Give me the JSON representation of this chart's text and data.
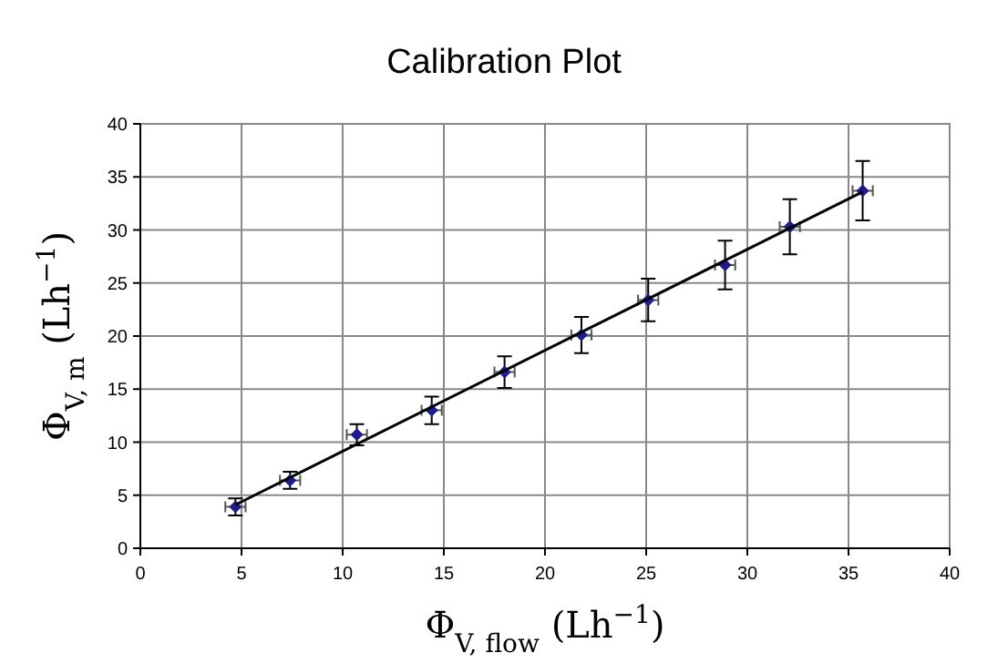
{
  "chart_data": {
    "type": "scatter",
    "title": "Calibration Plot",
    "xlabel": "Φ$_{V, flow}$ (Lh$^{−1}$)",
    "ylabel": "Φ$_{V, m}$ (Lh$^{−1}$)",
    "xlim": [
      0,
      40
    ],
    "ylim": [
      0,
      40
    ],
    "xticks": [
      0,
      5,
      10,
      15,
      20,
      25,
      30,
      35,
      40
    ],
    "yticks": [
      0,
      5,
      10,
      15,
      20,
      25,
      30,
      35,
      40
    ],
    "grid": true,
    "series": [
      {
        "color": "#1c1c8c",
        "marker": "diamond",
        "x": [
          4.7,
          7.4,
          10.7,
          14.4,
          18.0,
          21.8,
          25.1,
          28.9,
          32.1,
          35.7
        ],
        "values": [
          3.9,
          6.4,
          10.7,
          13.0,
          16.6,
          20.1,
          23.4,
          26.7,
          30.3,
          33.7
        ],
        "errors": [
          0.8,
          0.8,
          1.0,
          1.3,
          1.5,
          1.7,
          2.0,
          2.3,
          2.6,
          2.8
        ],
        "xerrors": [
          0.5,
          0.5,
          0.5,
          0.5,
          0.5,
          0.5,
          0.5,
          0.5,
          0.5,
          0.5
        ]
      },
      {
        "type": "line",
        "color": "#000000",
        "x": [
          4.7,
          35.7
        ],
        "values": [
          4.1,
          33.6
        ]
      }
    ]
  }
}
